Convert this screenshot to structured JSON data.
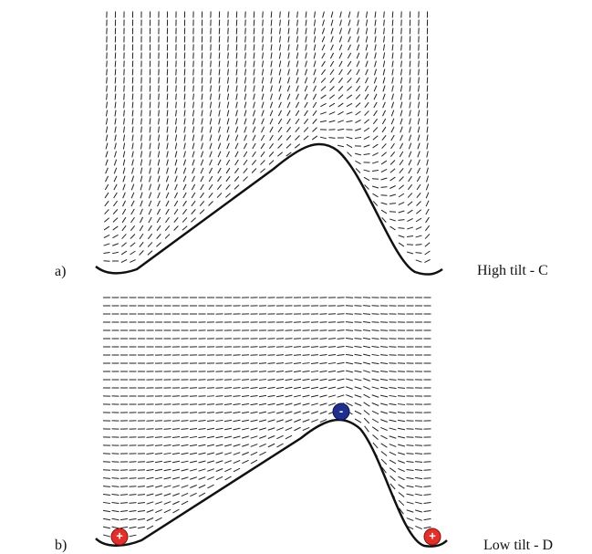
{
  "panels": [
    {
      "marker": "a)",
      "caption": "High tilt - C"
    },
    {
      "marker": "b)",
      "caption": "Low tilt - D"
    }
  ],
  "charges": {
    "negative": "-",
    "positive_left": "+",
    "positive_right": "+"
  }
}
